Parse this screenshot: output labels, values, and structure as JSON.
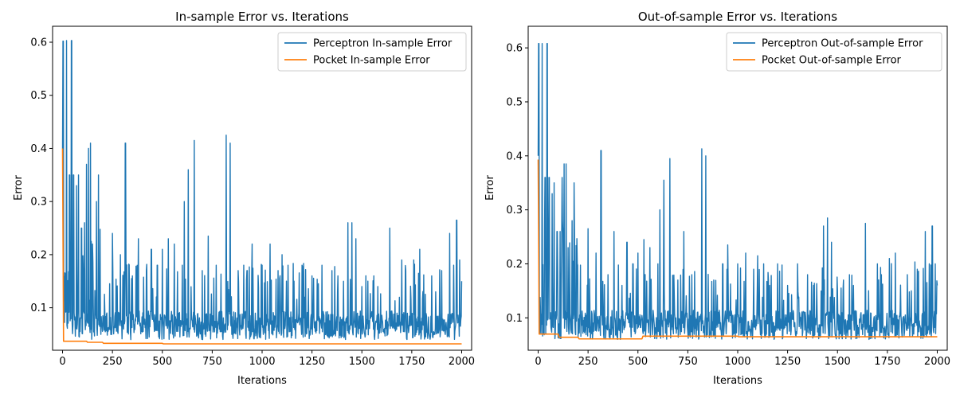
{
  "chart_data": [
    {
      "type": "line",
      "title": "In-sample Error vs. Iterations",
      "xlabel": "Iterations",
      "ylabel": "Error",
      "xlim": [
        -50,
        2050
      ],
      "ylim": [
        0.02,
        0.63
      ],
      "xticks": [
        0,
        250,
        500,
        750,
        1000,
        1250,
        1500,
        1750,
        2000
      ],
      "yticks": [
        0.1,
        0.2,
        0.3,
        0.4,
        0.5,
        0.6
      ],
      "grid": false,
      "legend_position": "top-right",
      "series": [
        {
          "name": "Perceptron In-sample Error",
          "color": "#1f77b4",
          "base_range": [
            0.04,
            0.1
          ],
          "peaks": [
            [
              0,
              0.4
            ],
            [
              3,
              0.602
            ],
            [
              20,
              0.603
            ],
            [
              35,
              0.35
            ],
            [
              45,
              0.603
            ],
            [
              55,
              0.35
            ],
            [
              70,
              0.33
            ],
            [
              80,
              0.35
            ],
            [
              95,
              0.25
            ],
            [
              110,
              0.26
            ],
            [
              120,
              0.37
            ],
            [
              130,
              0.4
            ],
            [
              140,
              0.41
            ],
            [
              150,
              0.22
            ],
            [
              170,
              0.3
            ],
            [
              180,
              0.35
            ],
            [
              250,
              0.24
            ],
            [
              290,
              0.2
            ],
            [
              315,
              0.41
            ],
            [
              350,
              0.16
            ],
            [
              380,
              0.23
            ],
            [
              420,
              0.17
            ],
            [
              445,
              0.21
            ],
            [
              475,
              0.18
            ],
            [
              500,
              0.21
            ],
            [
              530,
              0.23
            ],
            [
              560,
              0.22
            ],
            [
              600,
              0.18
            ],
            [
              610,
              0.3
            ],
            [
              630,
              0.36
            ],
            [
              660,
              0.415
            ],
            [
              700,
              0.17
            ],
            [
              730,
              0.235
            ],
            [
              770,
              0.18
            ],
            [
              820,
              0.425
            ],
            [
              840,
              0.41
            ],
            [
              880,
              0.17
            ],
            [
              925,
              0.17
            ],
            [
              950,
              0.22
            ],
            [
              1000,
              0.18
            ],
            [
              1040,
              0.22
            ],
            [
              1080,
              0.17
            ],
            [
              1100,
              0.2
            ],
            [
              1130,
              0.18
            ],
            [
              1160,
              0.15
            ],
            [
              1200,
              0.18
            ],
            [
              1250,
              0.16
            ],
            [
              1300,
              0.18
            ],
            [
              1350,
              0.17
            ],
            [
              1380,
              0.16
            ],
            [
              1430,
              0.26
            ],
            [
              1450,
              0.26
            ],
            [
              1470,
              0.23
            ],
            [
              1500,
              0.14
            ],
            [
              1530,
              0.15
            ],
            [
              1560,
              0.16
            ],
            [
              1580,
              0.14
            ],
            [
              1640,
              0.25
            ],
            [
              1700,
              0.19
            ],
            [
              1720,
              0.17
            ],
            [
              1760,
              0.19
            ],
            [
              1790,
              0.21
            ],
            [
              1850,
              0.16
            ],
            [
              1870,
              0.13
            ],
            [
              1900,
              0.17
            ],
            [
              1940,
              0.24
            ],
            [
              1960,
              0.18
            ],
            [
              1975,
              0.265
            ],
            [
              1990,
              0.19
            ],
            [
              2000,
              0.15
            ]
          ]
        },
        {
          "name": "Pocket In-sample Error",
          "color": "#ff7f0e",
          "points": [
            [
              0,
              0.4
            ],
            [
              5,
              0.037
            ],
            [
              120,
              0.037
            ],
            [
              125,
              0.035
            ],
            [
              200,
              0.035
            ],
            [
              205,
              0.033
            ],
            [
              500,
              0.033
            ],
            [
              505,
              0.032
            ],
            [
              2000,
              0.032
            ]
          ]
        }
      ]
    },
    {
      "type": "line",
      "title": "Out-of-sample Error vs. Iterations",
      "xlabel": "Iterations",
      "ylabel": "Error",
      "xlim": [
        -50,
        2050
      ],
      "ylim": [
        0.04,
        0.64
      ],
      "xticks": [
        0,
        250,
        500,
        750,
        1000,
        1250,
        1500,
        1750,
        2000
      ],
      "yticks": [
        0.1,
        0.2,
        0.3,
        0.4,
        0.5,
        0.6
      ],
      "grid": false,
      "legend_position": "top-right",
      "series": [
        {
          "name": "Perceptron Out-of-sample Error",
          "color": "#1f77b4",
          "base_range": [
            0.06,
            0.12
          ],
          "peaks": [
            [
              0,
              0.4
            ],
            [
              3,
              0.608
            ],
            [
              20,
              0.608
            ],
            [
              35,
              0.36
            ],
            [
              45,
              0.608
            ],
            [
              55,
              0.36
            ],
            [
              70,
              0.33
            ],
            [
              80,
              0.35
            ],
            [
              95,
              0.26
            ],
            [
              110,
              0.26
            ],
            [
              120,
              0.36
            ],
            [
              130,
              0.385
            ],
            [
              140,
              0.385
            ],
            [
              150,
              0.23
            ],
            [
              170,
              0.28
            ],
            [
              180,
              0.35
            ],
            [
              250,
              0.265
            ],
            [
              290,
              0.22
            ],
            [
              315,
              0.41
            ],
            [
              350,
              0.18
            ],
            [
              380,
              0.26
            ],
            [
              420,
              0.16
            ],
            [
              445,
              0.24
            ],
            [
              475,
              0.2
            ],
            [
              500,
              0.22
            ],
            [
              530,
              0.245
            ],
            [
              560,
              0.23
            ],
            [
              600,
              0.2
            ],
            [
              610,
              0.3
            ],
            [
              630,
              0.355
            ],
            [
              660,
              0.395
            ],
            [
              700,
              0.17
            ],
            [
              730,
              0.26
            ],
            [
              770,
              0.18
            ],
            [
              820,
              0.413
            ],
            [
              840,
              0.4
            ],
            [
              880,
              0.17
            ],
            [
              925,
              0.2
            ],
            [
              950,
              0.235
            ],
            [
              1000,
              0.2
            ],
            [
              1040,
              0.22
            ],
            [
              1080,
              0.19
            ],
            [
              1100,
              0.215
            ],
            [
              1130,
              0.2
            ],
            [
              1160,
              0.16
            ],
            [
              1200,
              0.2
            ],
            [
              1250,
              0.16
            ],
            [
              1300,
              0.2
            ],
            [
              1350,
              0.18
            ],
            [
              1380,
              0.16
            ],
            [
              1430,
              0.27
            ],
            [
              1450,
              0.285
            ],
            [
              1470,
              0.24
            ],
            [
              1500,
              0.15
            ],
            [
              1530,
              0.17
            ],
            [
              1560,
              0.18
            ],
            [
              1580,
              0.16
            ],
            [
              1640,
              0.275
            ],
            [
              1700,
              0.2
            ],
            [
              1720,
              0.18
            ],
            [
              1760,
              0.21
            ],
            [
              1790,
              0.22
            ],
            [
              1850,
              0.18
            ],
            [
              1870,
              0.15
            ],
            [
              1900,
              0.19
            ],
            [
              1940,
              0.26
            ],
            [
              1960,
              0.2
            ],
            [
              1975,
              0.27
            ],
            [
              1990,
              0.2
            ],
            [
              2000,
              0.16
            ]
          ]
        },
        {
          "name": "Pocket Out-of-sample Error",
          "color": "#ff7f0e",
          "points": [
            [
              0,
              0.393
            ],
            [
              5,
              0.07
            ],
            [
              100,
              0.07
            ],
            [
              105,
              0.064
            ],
            [
              200,
              0.064
            ],
            [
              205,
              0.061
            ],
            [
              520,
              0.061
            ],
            [
              525,
              0.066
            ],
            [
              1000,
              0.066
            ],
            [
              1005,
              0.065
            ],
            [
              2000,
              0.065
            ]
          ]
        }
      ]
    }
  ]
}
